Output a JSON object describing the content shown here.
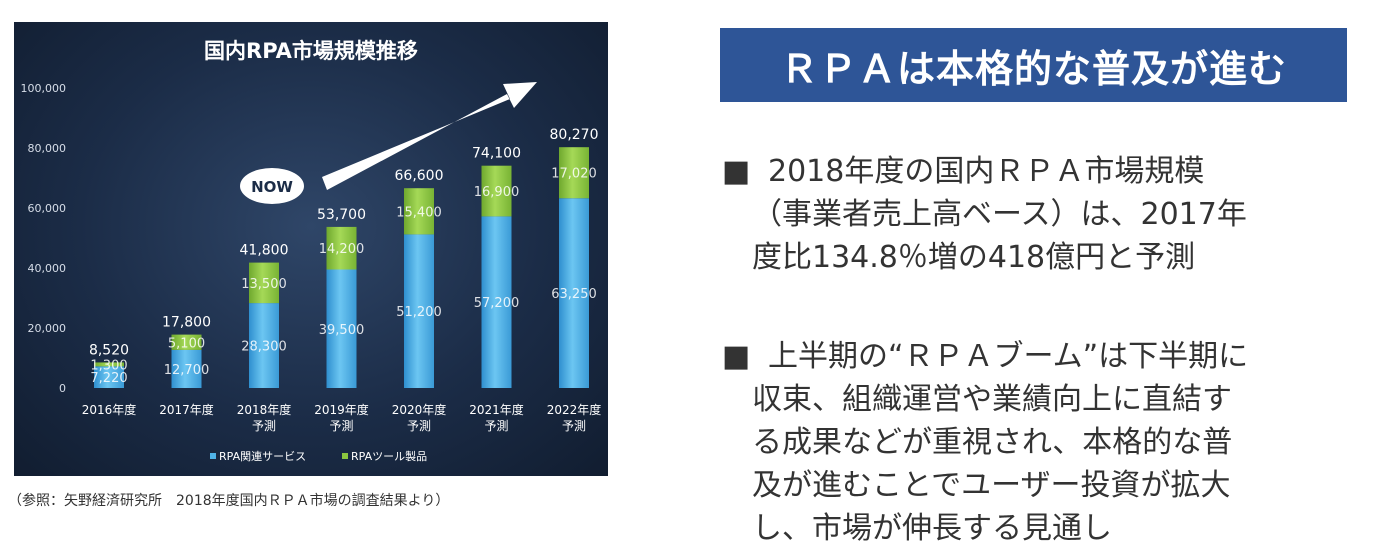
{
  "chart_data": {
    "type": "bar",
    "stacked": true,
    "title": "国内RPA市場規模推移",
    "categories": [
      [
        "2016年度"
      ],
      [
        "2017年度"
      ],
      [
        "2018年度",
        "予測"
      ],
      [
        "2019年度",
        "予測"
      ],
      [
        "2020年度",
        "予測"
      ],
      [
        "2021年度",
        "予測"
      ],
      [
        "2022年度",
        "予測"
      ]
    ],
    "series": [
      {
        "name": "RPA関連サービス",
        "color": "#4fb3e8",
        "values": [
          7220,
          12700,
          28300,
          39500,
          51200,
          57200,
          63250
        ]
      },
      {
        "name": "RPAツール製品",
        "color": "#8cc63f",
        "values": [
          1300,
          5100,
          13500,
          14200,
          15400,
          16900,
          17020
        ]
      }
    ],
    "totals": [
      8520,
      17800,
      41800,
      53700,
      66600,
      74100,
      80270
    ],
    "value_labels": {
      "series0": [
        "7,220",
        "12,700",
        "28,300",
        "39,500",
        "51,200",
        "57,200",
        "63,250"
      ],
      "series1": [
        "1,300",
        "5,100",
        "13,500",
        "14,200",
        "15,400",
        "16,900",
        "17,020"
      ],
      "totals": [
        "8,520",
        "17,800",
        "41,800",
        "53,700",
        "66,600",
        "74,100",
        "80,270"
      ]
    },
    "yticks": [
      "0",
      "20,000",
      "40,000",
      "60,000",
      "80,000",
      "100,000"
    ],
    "ylim": [
      0,
      100000
    ],
    "legend_position": "bottom",
    "annotation": "NOW",
    "xlabel": "",
    "ylabel": ""
  },
  "caption": "（参照：矢野経済研究所　2018年度国内ＲＰＡ市場の調査結果より）",
  "headline": "ＲＰＡは本格的な普及が進む",
  "bullet_mark": "■",
  "bullets": [
    {
      "lines": [
        "2018年度の国内ＲＰＡ市場規模",
        "（事業者売上高ベース）は、2017年",
        "度比134.8％増の418億円と予測"
      ]
    },
    {
      "lines": [
        "上半期の“ＲＰＡブーム”は下半期に",
        "収束、組織運営や業績向上に直結す",
        "る成果などが重視され、本格的な普",
        "及が進むことでユーザー投資が拡大",
        "し、市場が伸長する見通し"
      ]
    }
  ]
}
